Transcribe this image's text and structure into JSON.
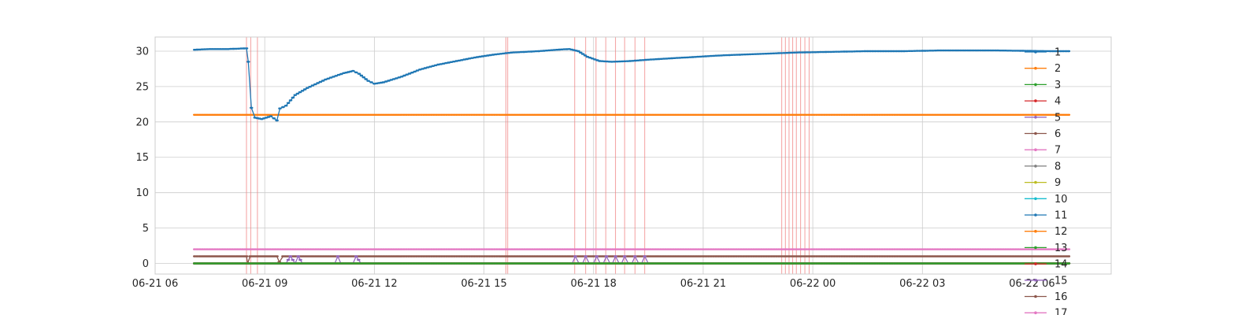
{
  "chart_data": {
    "type": "line",
    "title": "",
    "xlabel": "",
    "ylabel": "",
    "x_range": [
      "2021-06-21 06:00",
      "2021-06-22 08:10"
    ],
    "ylim": [
      -1.5,
      32
    ],
    "grid": true,
    "legend_placement": "right",
    "x_ticks": [
      {
        "t": "2021-06-21 06:00",
        "label": "06-21 06"
      },
      {
        "t": "2021-06-21 09:00",
        "label": "06-21 09"
      },
      {
        "t": "2021-06-21 12:00",
        "label": "06-21 12"
      },
      {
        "t": "2021-06-21 15:00",
        "label": "06-21 15"
      },
      {
        "t": "2021-06-21 18:00",
        "label": "06-21 18"
      },
      {
        "t": "2021-06-21 21:00",
        "label": "06-21 21"
      },
      {
        "t": "2021-06-22 00:00",
        "label": "06-22 00"
      },
      {
        "t": "2021-06-22 03:00",
        "label": "06-22 03"
      },
      {
        "t": "2021-06-22 06:00",
        "label": "06-22 06"
      }
    ],
    "y_ticks": [
      0,
      5,
      10,
      15,
      20,
      25,
      30
    ],
    "event_lines": [
      "2021-06-21 08:30",
      "2021-06-21 08:37",
      "2021-06-21 08:48",
      "2021-06-21 15:36",
      "2021-06-21 15:39",
      "2021-06-21 17:29",
      "2021-06-21 17:47",
      "2021-06-21 18:04",
      "2021-06-21 18:20",
      "2021-06-21 18:36",
      "2021-06-21 18:51",
      "2021-06-21 19:08",
      "2021-06-21 19:24",
      "2021-06-21 23:09",
      "2021-06-21 23:15",
      "2021-06-21 23:21",
      "2021-06-21 23:27",
      "2021-06-21 23:33",
      "2021-06-21 23:40",
      "2021-06-21 23:47",
      "2021-06-21 23:54"
    ],
    "series": [
      {
        "name": "1",
        "color": "#1f77b4",
        "points": [
          [
            "2021-06-21 07:05",
            30.2
          ],
          [
            "2021-06-21 07:30",
            30.3
          ],
          [
            "2021-06-21 08:00",
            30.3
          ],
          [
            "2021-06-21 08:30",
            30.4
          ],
          [
            "2021-06-21 08:33",
            28.5
          ],
          [
            "2021-06-21 08:38",
            22.0
          ],
          [
            "2021-06-21 08:44",
            20.6
          ],
          [
            "2021-06-21 08:55",
            20.4
          ],
          [
            "2021-06-21 09:10",
            20.8
          ],
          [
            "2021-06-21 09:20",
            20.2
          ],
          [
            "2021-06-21 09:25",
            21.9
          ],
          [
            "2021-06-21 09:35",
            22.3
          ],
          [
            "2021-06-21 09:50",
            23.8
          ],
          [
            "2021-06-21 10:10",
            24.8
          ],
          [
            "2021-06-21 10:40",
            26.0
          ],
          [
            "2021-06-21 11:10",
            26.9
          ],
          [
            "2021-06-21 11:25",
            27.2
          ],
          [
            "2021-06-21 11:35",
            26.8
          ],
          [
            "2021-06-21 11:50",
            25.8
          ],
          [
            "2021-06-21 12:00",
            25.4
          ],
          [
            "2021-06-21 12:15",
            25.6
          ],
          [
            "2021-06-21 12:45",
            26.4
          ],
          [
            "2021-06-21 13:15",
            27.4
          ],
          [
            "2021-06-21 13:45",
            28.1
          ],
          [
            "2021-06-21 14:15",
            28.6
          ],
          [
            "2021-06-21 14:45",
            29.1
          ],
          [
            "2021-06-21 15:15",
            29.5
          ],
          [
            "2021-06-21 15:45",
            29.8
          ],
          [
            "2021-06-21 16:30",
            30.0
          ],
          [
            "2021-06-21 17:00",
            30.2
          ],
          [
            "2021-06-21 17:20",
            30.3
          ],
          [
            "2021-06-21 17:35",
            30.0
          ],
          [
            "2021-06-21 17:50",
            29.2
          ],
          [
            "2021-06-21 18:10",
            28.6
          ],
          [
            "2021-06-21 18:30",
            28.5
          ],
          [
            "2021-06-21 19:00",
            28.6
          ],
          [
            "2021-06-21 19:30",
            28.8
          ],
          [
            "2021-06-21 20:30",
            29.1
          ],
          [
            "2021-06-21 21:30",
            29.4
          ],
          [
            "2021-06-21 22:30",
            29.6
          ],
          [
            "2021-06-21 23:30",
            29.8
          ],
          [
            "2021-06-22 00:30",
            29.9
          ],
          [
            "2021-06-22 01:30",
            30.0
          ],
          [
            "2021-06-22 02:30",
            30.0
          ],
          [
            "2021-06-22 03:30",
            30.1
          ],
          [
            "2021-06-22 05:00",
            30.1
          ],
          [
            "2021-06-22 06:30",
            30.0
          ],
          [
            "2021-06-22 07:00",
            30.0
          ]
        ]
      },
      {
        "name": "2",
        "color": "#ff7f0e",
        "points": [
          [
            "2021-06-21 07:05",
            21.0
          ],
          [
            "2021-06-22 07:00",
            21.0
          ]
        ]
      },
      {
        "name": "3",
        "color": "#2ca02c",
        "points": [
          [
            "2021-06-21 07:05",
            0.0
          ],
          [
            "2021-06-22 07:00",
            0.0
          ]
        ]
      },
      {
        "name": "4",
        "color": "#d62728",
        "points": [
          [
            "2021-06-21 07:05",
            0.0
          ],
          [
            "2021-06-22 07:00",
            0.0
          ]
        ]
      },
      {
        "name": "5",
        "color": "#9467bd",
        "points": [
          [
            "2021-06-21 07:05",
            0.0
          ],
          [
            "2021-06-21 09:35",
            0.0
          ],
          [
            "2021-06-21 09:42",
            1.0
          ],
          [
            "2021-06-21 09:50",
            0.0
          ],
          [
            "2021-06-21 09:55",
            1.0
          ],
          [
            "2021-06-21 10:02",
            0.0
          ],
          [
            "2021-06-21 10:55",
            0.0
          ],
          [
            "2021-06-21 11:00",
            1.0
          ],
          [
            "2021-06-21 11:05",
            0.0
          ],
          [
            "2021-06-21 11:25",
            0.0
          ],
          [
            "2021-06-21 11:30",
            1.0
          ],
          [
            "2021-06-21 11:38",
            0.0
          ],
          [
            "2021-06-21 17:25",
            0.0
          ],
          [
            "2021-06-21 17:30",
            1.0
          ],
          [
            "2021-06-21 17:36",
            0.0
          ],
          [
            "2021-06-21 17:42",
            0.0
          ],
          [
            "2021-06-21 17:47",
            1.0
          ],
          [
            "2021-06-21 17:53",
            0.0
          ],
          [
            "2021-06-21 18:00",
            0.0
          ],
          [
            "2021-06-21 18:05",
            1.0
          ],
          [
            "2021-06-21 18:11",
            0.0
          ],
          [
            "2021-06-21 18:16",
            0.0
          ],
          [
            "2021-06-21 18:21",
            1.0
          ],
          [
            "2021-06-21 18:27",
            0.0
          ],
          [
            "2021-06-21 18:31",
            0.0
          ],
          [
            "2021-06-21 18:36",
            1.0
          ],
          [
            "2021-06-21 18:42",
            0.0
          ],
          [
            "2021-06-21 18:46",
            0.0
          ],
          [
            "2021-06-21 18:51",
            1.0
          ],
          [
            "2021-06-21 18:57",
            0.0
          ],
          [
            "2021-06-21 19:03",
            0.0
          ],
          [
            "2021-06-21 19:08",
            1.0
          ],
          [
            "2021-06-21 19:14",
            0.0
          ],
          [
            "2021-06-21 19:19",
            0.0
          ],
          [
            "2021-06-21 19:24",
            1.0
          ],
          [
            "2021-06-21 19:30",
            0.0
          ],
          [
            "2021-06-22 07:00",
            0.0
          ]
        ]
      },
      {
        "name": "6",
        "color": "#8c564b",
        "points": [
          [
            "2021-06-21 07:05",
            1.0
          ],
          [
            "2021-06-21 08:30",
            1.0
          ],
          [
            "2021-06-21 08:32",
            0.0
          ],
          [
            "2021-06-21 08:36",
            1.0
          ],
          [
            "2021-06-21 09:20",
            1.0
          ],
          [
            "2021-06-21 09:24",
            0.2
          ],
          [
            "2021-06-21 09:30",
            1.0
          ],
          [
            "2021-06-22 07:00",
            1.0
          ]
        ]
      },
      {
        "name": "7",
        "color": "#e377c2",
        "points": [
          [
            "2021-06-21 07:05",
            2.0
          ],
          [
            "2021-06-22 07:00",
            2.0
          ]
        ]
      },
      {
        "name": "8",
        "color": "#7f7f7f",
        "points": [
          [
            "2021-06-21 07:05",
            0.0
          ],
          [
            "2021-06-22 07:00",
            0.0
          ]
        ]
      },
      {
        "name": "9",
        "color": "#bcbd22",
        "points": [
          [
            "2021-06-21 07:05",
            0.0
          ],
          [
            "2021-06-22 07:00",
            0.0
          ]
        ]
      },
      {
        "name": "10",
        "color": "#17becf",
        "points": [
          [
            "2021-06-21 07:05",
            0.0
          ],
          [
            "2021-06-22 07:00",
            0.0
          ]
        ]
      },
      {
        "name": "11",
        "color": "#1f77b4",
        "points": [
          [
            "2021-06-21 07:05",
            0.0
          ],
          [
            "2021-06-22 07:00",
            0.0
          ]
        ]
      },
      {
        "name": "12",
        "color": "#ff7f0e",
        "points": [
          [
            "2021-06-21 07:05",
            0.0
          ],
          [
            "2021-06-22 07:00",
            0.0
          ]
        ]
      },
      {
        "name": "13",
        "color": "#2ca02c",
        "points": [
          [
            "2021-06-21 07:05",
            0.0
          ],
          [
            "2021-06-22 07:00",
            0.0
          ]
        ]
      },
      {
        "name": "14",
        "color": "#d62728",
        "points": [
          [
            "2021-06-21 07:05",
            0.0
          ],
          [
            "2021-06-22 07:00",
            0.0
          ]
        ]
      },
      {
        "name": "15",
        "color": "#9467bd",
        "points": [
          [
            "2021-06-21 07:05",
            0.0
          ],
          [
            "2021-06-22 07:00",
            0.0
          ]
        ]
      },
      {
        "name": "16",
        "color": "#8c564b",
        "points": [
          [
            "2021-06-21 07:05",
            0.0
          ],
          [
            "2021-06-22 07:00",
            0.0
          ]
        ]
      },
      {
        "name": "17",
        "color": "#e377c2",
        "points": [
          [
            "2021-06-21 07:05",
            0.0
          ],
          [
            "2021-06-22 07:00",
            0.0
          ]
        ]
      }
    ]
  }
}
